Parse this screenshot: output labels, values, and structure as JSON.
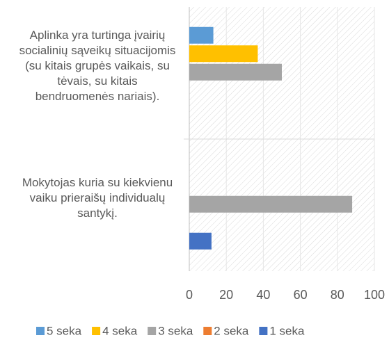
{
  "chart_data": {
    "type": "bar",
    "orientation": "horizontal",
    "categories": [
      "Aplinka yra turtinga įvairių socialinių sąveikų situacijomis (su kitais grupės vaikais, su tėvais, su kitais bendruomenės nariais).",
      "Mokytojas kuria su kiekvienu vaiku prieraišų individualų santykį."
    ],
    "series": [
      {
        "name": "5 seka",
        "color": "#5b9bd5",
        "values": [
          13,
          0
        ]
      },
      {
        "name": "4 seka",
        "color": "#ffc000",
        "values": [
          37,
          0
        ]
      },
      {
        "name": "3 seka",
        "color": "#a5a5a5",
        "values": [
          50,
          88
        ]
      },
      {
        "name": "2 seka",
        "color": "#ed7d31",
        "values": [
          0,
          0
        ]
      },
      {
        "name": "1 seka",
        "color": "#4472c4",
        "values": [
          0,
          12
        ]
      }
    ],
    "xlim": [
      0,
      100
    ],
    "xticks": [
      0,
      20,
      40,
      60,
      80,
      100
    ],
    "grid": true,
    "legend": "bottom"
  }
}
